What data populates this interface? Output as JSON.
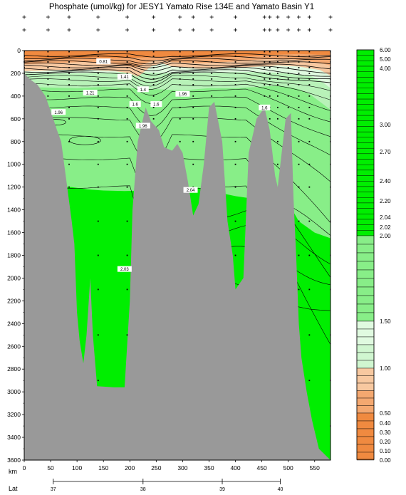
{
  "chart_data": {
    "type": "heatmap",
    "title": "Phosphate (umol/kg) for JESY1 Yamato Rise 134E and Yamato Basin Y1",
    "xlabel": "km",
    "lat_label": "Lat",
    "xlim": [
      0,
      580
    ],
    "ylim": [
      3600,
      0
    ],
    "x_ticks": [
      0,
      50,
      100,
      150,
      200,
      250,
      300,
      350,
      400,
      450,
      500,
      550
    ],
    "y_ticks": [
      0,
      200,
      400,
      600,
      800,
      1000,
      1200,
      1400,
      1600,
      1800,
      2000,
      2200,
      2400,
      2600,
      2800,
      3000,
      3200,
      3400,
      3600
    ],
    "lat_ticks": [
      {
        "km": 55,
        "label": "37"
      },
      {
        "km": 225,
        "label": "38"
      },
      {
        "km": 375,
        "label": "39"
      },
      {
        "km": 485,
        "label": "40"
      }
    ],
    "station_km": [
      0,
      45,
      85,
      140,
      195,
      245,
      295,
      320,
      355,
      400,
      455,
      465,
      480,
      500,
      520,
      540,
      580
    ],
    "bottom_profile": [
      [
        0,
        3600
      ],
      [
        0,
        200
      ],
      [
        10,
        250
      ],
      [
        25,
        300
      ],
      [
        40,
        400
      ],
      [
        55,
        600
      ],
      [
        62,
        700
      ],
      [
        70,
        800
      ],
      [
        80,
        1150
      ],
      [
        90,
        1500
      ],
      [
        95,
        1700
      ],
      [
        100,
        2300
      ],
      [
        105,
        2550
      ],
      [
        112,
        2750
      ],
      [
        118,
        2500
      ],
      [
        125,
        2000
      ],
      [
        130,
        2500
      ],
      [
        138,
        2950
      ],
      [
        170,
        2960
      ],
      [
        190,
        2960
      ],
      [
        200,
        2200
      ],
      [
        205,
        1400
      ],
      [
        215,
        800
      ],
      [
        230,
        500
      ],
      [
        240,
        620
      ],
      [
        255,
        700
      ],
      [
        265,
        850
      ],
      [
        280,
        880
      ],
      [
        290,
        820
      ],
      [
        300,
        900
      ],
      [
        310,
        1150
      ],
      [
        315,
        1300
      ],
      [
        320,
        1450
      ],
      [
        330,
        1350
      ],
      [
        340,
        1000
      ],
      [
        350,
        500
      ],
      [
        360,
        450
      ],
      [
        375,
        800
      ],
      [
        385,
        1500
      ],
      [
        395,
        1800
      ],
      [
        400,
        2100
      ],
      [
        415,
        2000
      ],
      [
        425,
        900
      ],
      [
        440,
        600
      ],
      [
        455,
        500
      ],
      [
        465,
        700
      ],
      [
        475,
        1100
      ],
      [
        480,
        1200
      ],
      [
        485,
        1000
      ],
      [
        495,
        600
      ],
      [
        505,
        550
      ],
      [
        510,
        1300
      ],
      [
        515,
        1800
      ],
      [
        520,
        2400
      ],
      [
        525,
        2700
      ],
      [
        535,
        3000
      ],
      [
        545,
        3250
      ],
      [
        558,
        3500
      ],
      [
        580,
        3600
      ]
    ],
    "colorbar": {
      "labels": [
        "6.00",
        "5.00",
        "4.00",
        "3.00",
        "2.70",
        "2.40",
        "2.20",
        "2.04",
        "2.02",
        "2.00",
        "1.50",
        "1.00",
        "0.50",
        "0.40",
        "0.30",
        "0.20",
        "0.10",
        "0.00"
      ],
      "label_positions": [
        6.0,
        5.0,
        4.0,
        3.0,
        2.7,
        2.4,
        2.2,
        2.04,
        2.02,
        2.0,
        1.5,
        1.0,
        0.5,
        0.4,
        0.3,
        0.2,
        0.1,
        0.0
      ]
    },
    "contour_labels": [
      {
        "km": 150,
        "depth": 95,
        "text": "0.81"
      },
      {
        "km": 190,
        "depth": 230,
        "text": "1.41"
      },
      {
        "km": 225,
        "depth": 340,
        "text": "1.4"
      },
      {
        "km": 210,
        "depth": 470,
        "text": "1.6"
      },
      {
        "km": 250,
        "depth": 470,
        "text": "1.6"
      },
      {
        "km": 125,
        "depth": 370,
        "text": "1.21"
      },
      {
        "km": 300,
        "depth": 380,
        "text": "1.96"
      },
      {
        "km": 65,
        "depth": 540,
        "text": "1.96"
      },
      {
        "km": 225,
        "depth": 660,
        "text": "1.96"
      },
      {
        "km": 455,
        "depth": 500,
        "text": "1.6"
      },
      {
        "km": 315,
        "depth": 1225,
        "text": "2.04"
      },
      {
        "km": 190,
        "depth": 1920,
        "text": "2.03"
      }
    ],
    "colors": {
      "deep": "#00ee00",
      "mid": "#88ee88",
      "upper": "#b8f2b8",
      "pale": "#e0fae0",
      "orange_light": "#f7c8a0",
      "orange_mid": "#f4a870",
      "orange_dark": "#f08a40",
      "bottom": "#999999"
    }
  }
}
